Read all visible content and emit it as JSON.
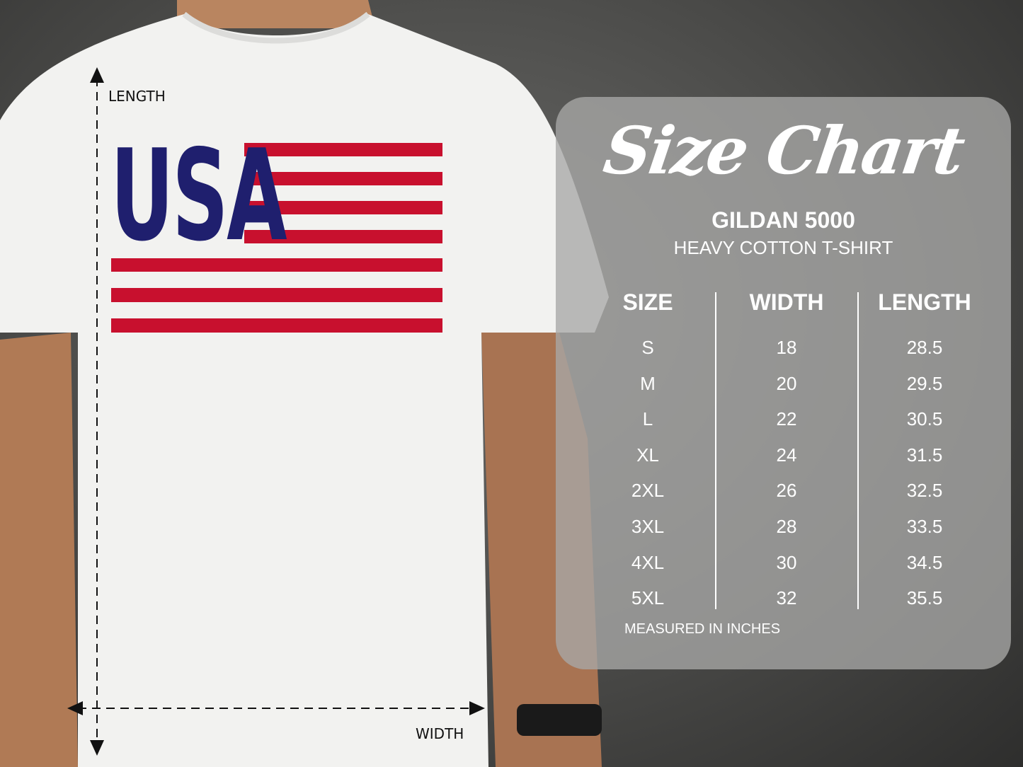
{
  "labels": {
    "length": "LENGTH",
    "width": "WIDTH"
  },
  "design": {
    "text": "USA",
    "colors": {
      "navy": "#1f1f6e",
      "red": "#c8102e"
    }
  },
  "chart": {
    "title": "Size Chart",
    "brand": "GILDAN 5000",
    "product": "HEAVY COTTON T-SHIRT",
    "headers": [
      "SIZE",
      "WIDTH",
      "LENGTH"
    ],
    "sizes": [
      "S",
      "M",
      "L",
      "XL",
      "2XL",
      "3XL",
      "4XL",
      "5XL"
    ],
    "widths": [
      "18",
      "20",
      "22",
      "24",
      "26",
      "28",
      "30",
      "32"
    ],
    "lengths": [
      "28.5",
      "29.5",
      "30.5",
      "31.5",
      "32.5",
      "33.5",
      "34.5",
      "35.5"
    ],
    "footnote": "MEASURED IN INCHES"
  }
}
